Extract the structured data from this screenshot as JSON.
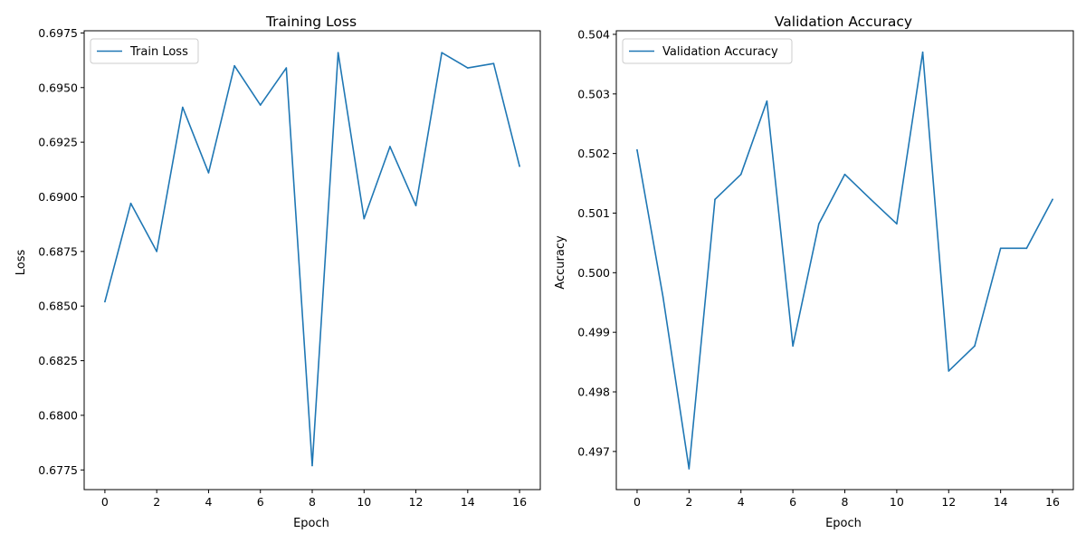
{
  "colors": {
    "series": "#1f77b4",
    "axis": "#000000",
    "legend_border": "#cccccc",
    "background": "#ffffff"
  },
  "chart_data": [
    {
      "type": "line",
      "title": "Training Loss",
      "xlabel": "Epoch",
      "ylabel": "Loss",
      "x": [
        0,
        1,
        2,
        3,
        4,
        5,
        6,
        7,
        8,
        9,
        10,
        11,
        12,
        13,
        14,
        15,
        16
      ],
      "xlim": [
        -0.8,
        16.8
      ],
      "ylim": [
        0.6766,
        0.6976
      ],
      "xticks": [
        0,
        2,
        4,
        6,
        8,
        10,
        12,
        14,
        16
      ],
      "xtick_labels": [
        "0",
        "2",
        "4",
        "6",
        "8",
        "10",
        "12",
        "14",
        "16"
      ],
      "yticks": [
        0.6775,
        0.68,
        0.6825,
        0.685,
        0.6875,
        0.69,
        0.6925,
        0.695,
        0.6975
      ],
      "ytick_labels": [
        "0.6775",
        "0.6800",
        "0.6825",
        "0.6850",
        "0.6875",
        "0.6900",
        "0.6925",
        "0.6950",
        "0.6975"
      ],
      "grid": false,
      "legend_position": "upper-left",
      "series": [
        {
          "name": "Train Loss",
          "color": "#1f77b4",
          "values": [
            0.6852,
            0.6897,
            0.6875,
            0.6941,
            0.6911,
            0.696,
            0.6942,
            0.6959,
            0.6777,
            0.6966,
            0.689,
            0.6923,
            0.6896,
            0.6966,
            0.6959,
            0.6961,
            0.6914
          ]
        }
      ]
    },
    {
      "type": "line",
      "title": "Validation Accuracy",
      "xlabel": "Epoch",
      "ylabel": "Accuracy",
      "x": [
        0,
        1,
        2,
        3,
        4,
        5,
        6,
        7,
        8,
        9,
        10,
        11,
        12,
        13,
        14,
        15,
        16
      ],
      "xlim": [
        -0.8,
        16.8
      ],
      "ylim": [
        0.49636,
        0.50406
      ],
      "xticks": [
        0,
        2,
        4,
        6,
        8,
        10,
        12,
        14,
        16
      ],
      "xtick_labels": [
        "0",
        "2",
        "4",
        "6",
        "8",
        "10",
        "12",
        "14",
        "16"
      ],
      "yticks": [
        0.497,
        0.498,
        0.499,
        0.5,
        0.501,
        0.502,
        0.503,
        0.504
      ],
      "ytick_labels": [
        "0.497",
        "0.498",
        "0.499",
        "0.500",
        "0.501",
        "0.502",
        "0.503",
        "0.504"
      ],
      "grid": false,
      "legend_position": "upper-left",
      "series": [
        {
          "name": "Validation Accuracy",
          "color": "#1f77b4",
          "values": [
            0.50206,
            0.49959,
            0.49671,
            0.50123,
            0.50165,
            0.50288,
            0.49877,
            0.50082,
            0.50165,
            0.50123,
            0.50082,
            0.5037,
            0.49835,
            0.49877,
            0.50041,
            0.50041,
            0.50123
          ]
        }
      ]
    }
  ]
}
